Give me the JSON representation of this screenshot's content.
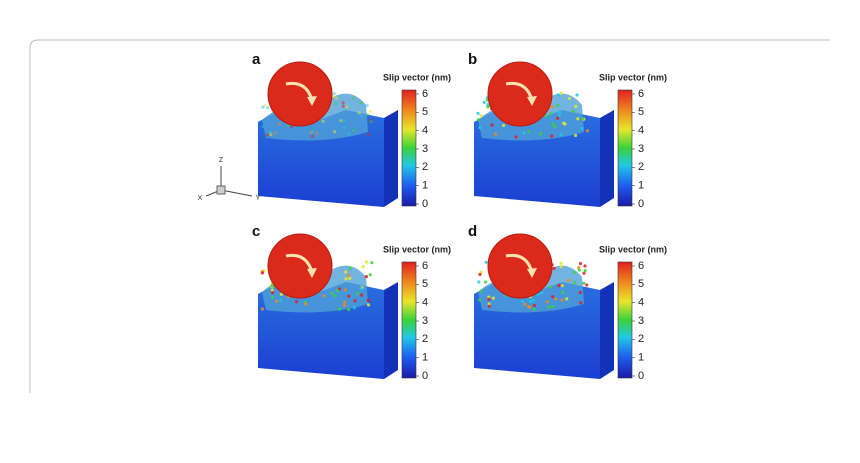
{
  "figure": {
    "panels": [
      {
        "label": "a",
        "colorbar_title": "Slip vector (nm)",
        "colorbar_ticks": [
          0,
          1,
          2,
          3,
          4,
          5,
          6
        ]
      },
      {
        "label": "b",
        "colorbar_title": "Slip vector (nm)",
        "colorbar_ticks": [
          0,
          1,
          2,
          3,
          4,
          5,
          6
        ]
      },
      {
        "label": "c",
        "colorbar_title": "Slip vector (nm)",
        "colorbar_ticks": [
          0,
          1,
          2,
          3,
          4,
          5,
          6
        ]
      },
      {
        "label": "d",
        "colorbar_title": "Slip vector (nm)",
        "colorbar_ticks": [
          0,
          1,
          2,
          3,
          4,
          5,
          6
        ]
      }
    ],
    "axes_triad": {
      "z": "Z",
      "x": "X",
      "y": "Y"
    }
  }
}
